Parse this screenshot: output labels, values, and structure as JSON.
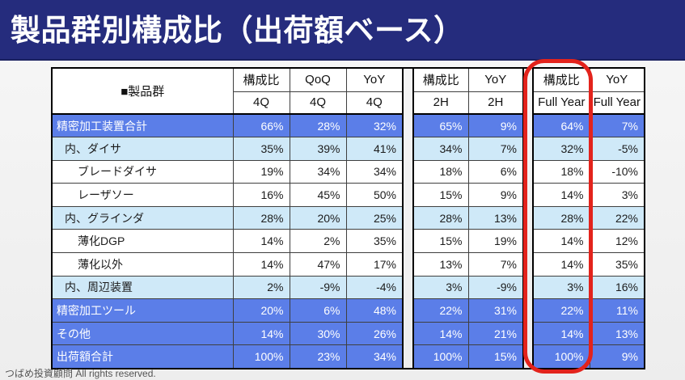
{
  "page": {
    "title": "製品群別構成比（出荷額ベース）",
    "footer": "つばめ投資顧問 All rights reserved."
  },
  "colors": {
    "banner_navy": "#252c7d",
    "total_row_blue": "#5b7ee8",
    "subtotal_row_light_blue": "#cfe9f8",
    "highlight_red": "#e3231c"
  },
  "table": {
    "name_header": "■製品群",
    "groups": [
      {
        "cols": [
          {
            "label": "構成比",
            "sub": "4Q"
          },
          {
            "label": "QoQ",
            "sub": "4Q"
          },
          {
            "label": "YoY",
            "sub": "4Q"
          }
        ]
      },
      {
        "cols": [
          {
            "label": "構成比",
            "sub": "2H"
          },
          {
            "label": "YoY",
            "sub": "2H"
          }
        ]
      },
      {
        "cols": [
          {
            "label": "構成比",
            "sub": "Full Year"
          },
          {
            "label": "YoY",
            "sub": "Full Year"
          }
        ]
      }
    ],
    "rows": [
      {
        "name": "精密加工装置合計",
        "level": 1,
        "values": [
          "66%",
          "28%",
          "32%",
          "65%",
          "9%",
          "64%",
          "7%"
        ]
      },
      {
        "name": "内、ダイサ",
        "level": 2,
        "values": [
          "35%",
          "39%",
          "41%",
          "34%",
          "7%",
          "32%",
          "-5%"
        ]
      },
      {
        "name": "ブレードダイサ",
        "level": 3,
        "values": [
          "19%",
          "34%",
          "34%",
          "18%",
          "6%",
          "18%",
          "-10%"
        ]
      },
      {
        "name": "レーザソー",
        "level": 3,
        "values": [
          "16%",
          "45%",
          "50%",
          "15%",
          "9%",
          "14%",
          "3%"
        ]
      },
      {
        "name": "内、グラインダ",
        "level": 2,
        "values": [
          "28%",
          "20%",
          "25%",
          "28%",
          "13%",
          "28%",
          "22%"
        ]
      },
      {
        "name": "薄化DGP",
        "level": 3,
        "values": [
          "14%",
          "2%",
          "35%",
          "15%",
          "19%",
          "14%",
          "12%"
        ]
      },
      {
        "name": "薄化以外",
        "level": 3,
        "values": [
          "14%",
          "47%",
          "17%",
          "13%",
          "7%",
          "14%",
          "35%"
        ]
      },
      {
        "name": "内、周辺装置",
        "level": 2,
        "values": [
          "2%",
          "-9%",
          "-4%",
          "3%",
          "-9%",
          "3%",
          "16%"
        ]
      },
      {
        "name": "精密加工ツール",
        "level": 1,
        "values": [
          "20%",
          "6%",
          "48%",
          "22%",
          "31%",
          "22%",
          "11%"
        ]
      },
      {
        "name": "その他",
        "level": 1,
        "values": [
          "14%",
          "30%",
          "26%",
          "14%",
          "21%",
          "14%",
          "13%"
        ]
      },
      {
        "name": "出荷額合計",
        "level": 1,
        "values": [
          "100%",
          "23%",
          "34%",
          "100%",
          "15%",
          "100%",
          "9%"
        ]
      }
    ]
  }
}
